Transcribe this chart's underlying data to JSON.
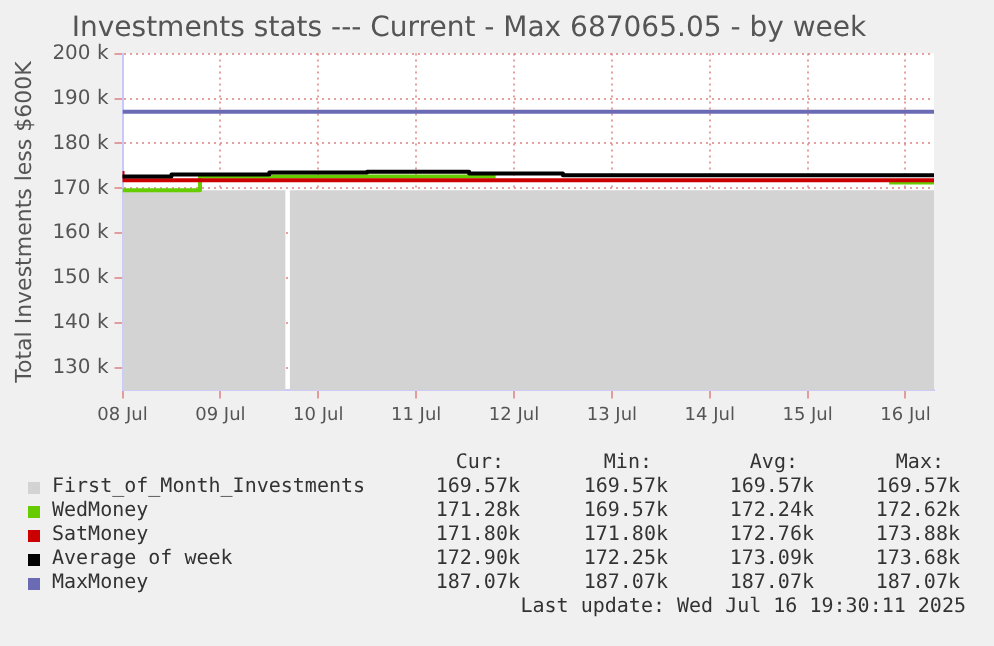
{
  "chart_data": {
    "type": "step",
    "title": "Investments stats --- Current - Max 687065.05 - by week",
    "ylabel": "Total Investments less $600K",
    "xlim": [
      "2025-07-08T00:00",
      "2025-07-16T07:00"
    ],
    "xticks": [
      {
        "value": "2025-07-08T00:00",
        "label": "08 Jul"
      },
      {
        "value": "2025-07-09T00:00",
        "label": "09 Jul"
      },
      {
        "value": "2025-07-10T00:00",
        "label": "10 Jul"
      },
      {
        "value": "2025-07-11T00:00",
        "label": "11 Jul"
      },
      {
        "value": "2025-07-12T00:00",
        "label": "12 Jul"
      },
      {
        "value": "2025-07-13T00:00",
        "label": "13 Jul"
      },
      {
        "value": "2025-07-14T00:00",
        "label": "14 Jul"
      },
      {
        "value": "2025-07-15T00:00",
        "label": "15 Jul"
      },
      {
        "value": "2025-07-16T00:00",
        "label": "16 Jul"
      }
    ],
    "ylim": [
      125000,
      200000
    ],
    "yticks": [
      {
        "value": 130000,
        "label": "130 k"
      },
      {
        "value": 140000,
        "label": "140 k"
      },
      {
        "value": 150000,
        "label": "150 k"
      },
      {
        "value": 160000,
        "label": "160 k"
      },
      {
        "value": 170000,
        "label": "170 k"
      },
      {
        "value": 180000,
        "label": "180 k"
      },
      {
        "value": 190000,
        "label": "190 k"
      },
      {
        "value": 200000,
        "label": "200 k"
      }
    ],
    "grid": true,
    "legend": "bottom",
    "series": [
      {
        "name": "First_of_Month_Investments",
        "type": "area",
        "color": "#d3d3d3",
        "x": [
          "2025-07-08T00:00",
          "2025-07-09T16:00",
          "2025-07-09T16:30",
          "2025-07-09T17:00",
          "2025-07-16T07:00"
        ],
        "values": [
          169570,
          169570,
          null,
          169570,
          169570
        ]
      },
      {
        "name": "WedMoney",
        "color": "#66cc00",
        "x": [
          "2025-07-08T00:00",
          "2025-07-08T19:00",
          "2025-07-08T20:00",
          "2025-07-11T19:30",
          "2025-07-11T20:00",
          "2025-07-15T20:00",
          "2025-07-16T07:00"
        ],
        "values": [
          169570,
          169570,
          172620,
          172620,
          null,
          171280,
          171280
        ]
      },
      {
        "name": "SatMoney",
        "color": "#cc0000",
        "x": [
          "2025-07-08T00:00",
          "2025-07-11T20:00",
          "2025-07-16T07:00"
        ],
        "values": [
          173880,
          171800,
          171800
        ]
      },
      {
        "name": "Average of week",
        "color": "#000000",
        "x": [
          "2025-07-08T00:00",
          "2025-07-08T12:00",
          "2025-07-09T12:00",
          "2025-07-10T12:00",
          "2025-07-11T13:00",
          "2025-07-12T12:00",
          "2025-07-13T12:00",
          "2025-07-16T07:00"
        ],
        "values": [
          172250,
          172620,
          173100,
          173500,
          173680,
          173300,
          172900,
          172900
        ]
      },
      {
        "name": "MaxMoney",
        "color": "#6b6bb5",
        "x": [
          "2025-07-08T00:00",
          "2025-07-16T07:00"
        ],
        "values": [
          187070,
          187070
        ]
      }
    ],
    "annotations": [
      "Cur:",
      "Min:",
      "Avg:",
      "Max:",
      "169.57k",
      "169.57k",
      "169.57k",
      "169.57k",
      "171.28k",
      "169.57k",
      "172.24k",
      "172.62k",
      "171.80k",
      "171.80k",
      "172.76k",
      "173.88k",
      "172.90k",
      "172.25k",
      "173.09k",
      "173.68k",
      "187.07k",
      "187.07k",
      "187.07k",
      "187.07k",
      "Last update: Wed Jul 16 19:30:11 2025"
    ]
  }
}
